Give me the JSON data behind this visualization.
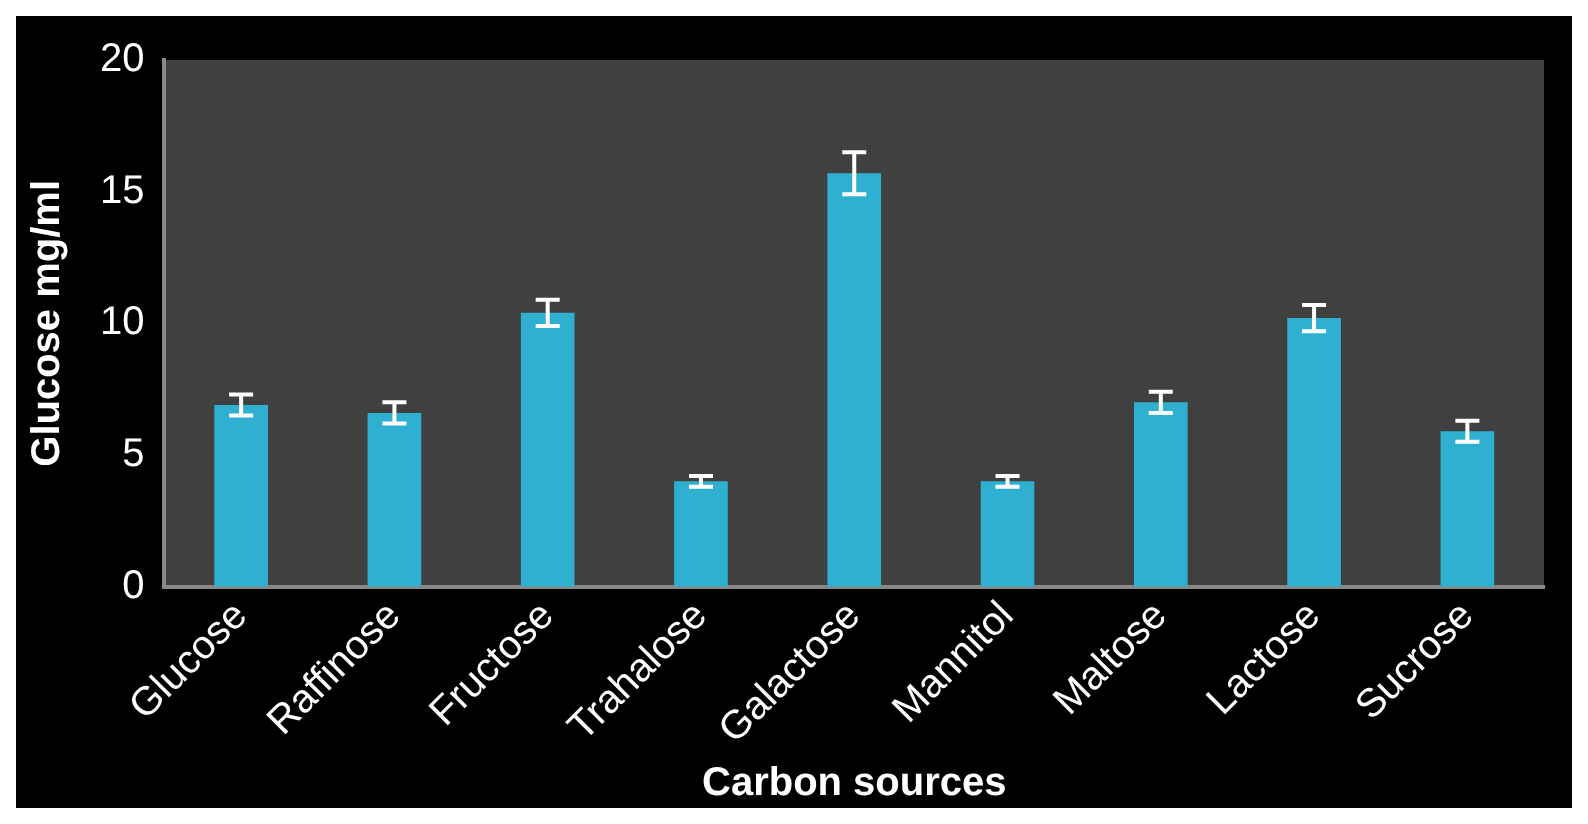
{
  "chart_data": {
    "type": "bar",
    "xlabel": "Carbon sources",
    "ylabel": "Glucose mg/ml",
    "categories": [
      "Glucose",
      "Raffinose",
      "Fructose",
      "Trahalose",
      "Galactose",
      "Mannitol",
      "Maltose",
      "Lactose",
      "Sucrose"
    ],
    "values": [
      6.9,
      6.6,
      10.4,
      4.0,
      15.7,
      4.0,
      7.0,
      10.2,
      5.9
    ],
    "errors": [
      0.4,
      0.4,
      0.5,
      0.2,
      0.8,
      0.2,
      0.4,
      0.5,
      0.4
    ],
    "color": "#2fb0d0",
    "ylim": [
      0,
      20
    ],
    "yticks": [
      0,
      5,
      10,
      15,
      20
    ],
    "grid": false,
    "legend": false
  }
}
